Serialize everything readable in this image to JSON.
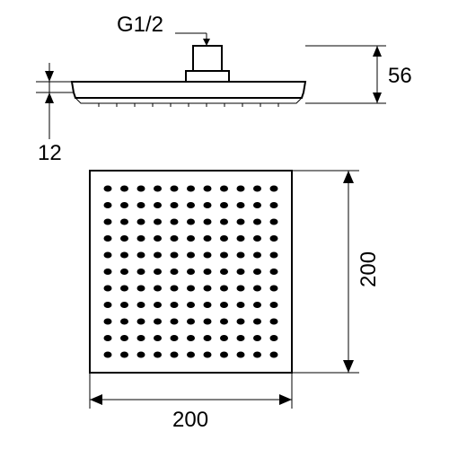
{
  "drawing": {
    "type": "technical-dimension-drawing",
    "thread_label": "G1/2",
    "dimensions": {
      "width_mm": 200,
      "height_mm": 200,
      "edge_thickness_mm": 12,
      "connector_height_mm": 56
    },
    "nozzle_grid": {
      "cols": 11,
      "rows": 11
    },
    "colors": {
      "stroke": "#000000",
      "background": "#ffffff",
      "nozzle": "#000000"
    },
    "font_size_pt": 18
  }
}
